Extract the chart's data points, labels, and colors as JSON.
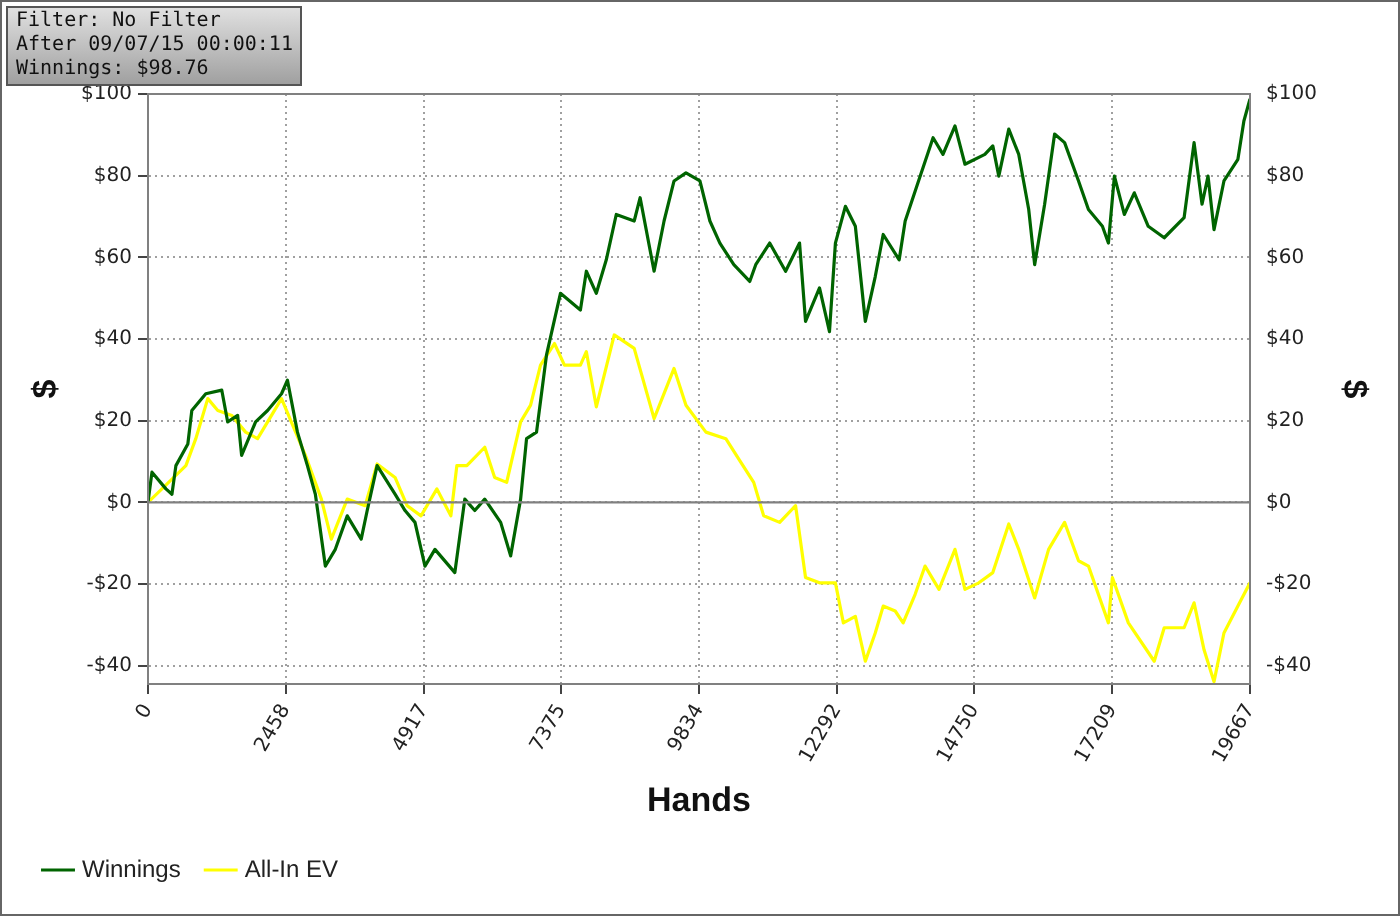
{
  "chart_data": {
    "type": "line",
    "xlabel": "Hands",
    "ylabel": "$",
    "y2label": "$",
    "annotations": [
      "Filter: No Filter",
      "After 09/07/15 00:00:11",
      "Winnings: $98.76"
    ],
    "xlim": [
      0,
      19667
    ],
    "xticks": [
      0,
      2458,
      4917,
      7375,
      9834,
      12292,
      14750,
      17209,
      19667
    ],
    "ylim": [
      -44.5,
      100
    ],
    "yticks": [
      {
        "value": -40,
        "label": "-$40"
      },
      {
        "value": -20,
        "label": "-$20"
      },
      {
        "value": 0,
        "label": "$0"
      },
      {
        "value": 20,
        "label": "$20"
      },
      {
        "value": 40,
        "label": "$40"
      },
      {
        "value": 60,
        "label": "$60"
      },
      {
        "value": 80,
        "label": "$80"
      },
      {
        "value": 100,
        "label": "$100"
      }
    ],
    "y2lim": [
      -44.5,
      100
    ],
    "y2ticks": [
      {
        "value": -40,
        "label": "-$40"
      },
      {
        "value": -20,
        "label": "-$20"
      },
      {
        "value": 0,
        "label": "$0"
      },
      {
        "value": 20,
        "label": "$20"
      },
      {
        "value": 40,
        "label": "$40"
      },
      {
        "value": 60,
        "label": "$60"
      },
      {
        "value": 80,
        "label": "$80"
      },
      {
        "value": 100,
        "label": "$100"
      }
    ],
    "ref_lines": [
      {
        "axis": "y",
        "value": 0,
        "color": "#808080"
      }
    ],
    "grid": true,
    "legend": "bottom left",
    "marker": "none",
    "line_style": "solid",
    "series": [
      {
        "name": "Winnings",
        "color": "#006400",
        "x": [
          0,
          71,
          320,
          427,
          498,
          711,
          782,
          1031,
          1316,
          1422,
          1600,
          1671,
          1920,
          2134,
          2383,
          2489,
          2667,
          2845,
          2987,
          3165,
          3343,
          3556,
          3805,
          3912,
          4089,
          4409,
          4587,
          4765,
          4943,
          5121,
          5476,
          5654,
          5832,
          6010,
          6294,
          6472,
          6650,
          6756,
          6934,
          7112,
          7361,
          7717,
          7823,
          8001,
          8179,
          8357,
          8677,
          8783,
          9032,
          9210,
          9388,
          9601,
          9850,
          10028,
          10206,
          10455,
          10739,
          10846,
          11095,
          11379,
          11628,
          11735,
          11984,
          12162,
          12268,
          12446,
          12624,
          12802,
          12979,
          13121,
          13406,
          13513,
          13762,
          14011,
          14188,
          14402,
          14580,
          14935,
          15077,
          15184,
          15362,
          15540,
          15718,
          15824,
          16002,
          16180,
          16358,
          16607,
          16784,
          17033,
          17140,
          17247,
          17424,
          17602,
          17851,
          18136,
          18491,
          18669,
          18811,
          18918,
          19025,
          19202,
          19451,
          19558,
          19667
        ],
        "values": [
          0,
          7.4,
          3.3,
          2.0,
          9.0,
          14.3,
          22.5,
          26.6,
          27.5,
          19.7,
          21.3,
          11.5,
          19.7,
          22.5,
          26.6,
          29.9,
          17.2,
          9.0,
          2.0,
          -15.6,
          -11.5,
          -3.3,
          -9.0,
          -2.0,
          9.0,
          2.0,
          -2.0,
          -4.9,
          -15.6,
          -11.5,
          -17.2,
          0.8,
          -2.0,
          0.8,
          -4.9,
          -13.1,
          0.8,
          15.6,
          17.2,
          36.1,
          51.2,
          47.1,
          56.6,
          51.2,
          59.4,
          70.5,
          68.9,
          74.6,
          56.6,
          68.9,
          78.7,
          80.7,
          78.7,
          68.9,
          63.5,
          58.2,
          54.1,
          58.2,
          63.5,
          56.6,
          63.5,
          44.3,
          52.5,
          41.8,
          63.5,
          72.5,
          67.6,
          44.3,
          55.3,
          65.6,
          59.4,
          68.9,
          79.1,
          89.3,
          85.2,
          92.2,
          82.8,
          85.2,
          87.3,
          79.9,
          91.4,
          85.2,
          71.7,
          58.2,
          73.0,
          90.2,
          88.1,
          78.7,
          71.7,
          67.6,
          63.5,
          79.9,
          70.5,
          75.8,
          67.6,
          64.8,
          69.7,
          88.1,
          73.0,
          79.9,
          66.8,
          78.7,
          84.0,
          93.4,
          98.8
        ]
      },
      {
        "name": "All-In EV",
        "color": "#ffff00",
        "x": [
          0,
          676,
          853,
          1067,
          1245,
          1494,
          1742,
          1956,
          2383,
          2809,
          3094,
          3272,
          3556,
          3876,
          4089,
          4409,
          4623,
          4872,
          5156,
          5405,
          5512,
          5690,
          6010,
          6187,
          6401,
          6650,
          6828,
          7005,
          7254,
          7432,
          7717,
          7823,
          8001,
          8321,
          8677,
          9032,
          9388,
          9601,
          9957,
          10312,
          10561,
          10810,
          10988,
          11273,
          11557,
          11735,
          11984,
          12268,
          12410,
          12624,
          12802,
          12979,
          13121,
          13335,
          13477,
          13691,
          13868,
          14117,
          14402,
          14580,
          14828,
          15077,
          15362,
          15540,
          15824,
          16073,
          16358,
          16607,
          16784,
          17140,
          17211,
          17496,
          17958,
          18136,
          18491,
          18669,
          18847,
          19025,
          19202,
          19451,
          19667
        ],
        "values": [
          0,
          9.0,
          15.6,
          25.4,
          22.5,
          21.3,
          17.2,
          15.6,
          25.4,
          11.5,
          0.8,
          -9.0,
          0.8,
          -0.8,
          9.4,
          6.1,
          -0.8,
          -3.3,
          3.3,
          -3.3,
          9.0,
          9.0,
          13.5,
          6.1,
          4.9,
          19.7,
          23.8,
          33.6,
          38.9,
          33.6,
          33.6,
          36.9,
          23.4,
          41.0,
          37.7,
          20.5,
          32.8,
          23.8,
          17.2,
          15.6,
          10.2,
          4.9,
          -3.3,
          -4.9,
          -0.8,
          -18.4,
          -19.7,
          -19.7,
          -29.5,
          -27.9,
          -38.9,
          -32.0,
          -25.4,
          -26.6,
          -29.5,
          -22.5,
          -15.6,
          -21.3,
          -11.5,
          -21.3,
          -19.7,
          -17.2,
          -5.3,
          -11.5,
          -23.4,
          -11.5,
          -4.9,
          -14.3,
          -15.6,
          -29.5,
          -18.4,
          -29.5,
          -38.9,
          -30.7,
          -30.7,
          -24.6,
          -36.1,
          -43.9,
          -32.0,
          -25.4,
          -19.7
        ]
      }
    ]
  }
}
